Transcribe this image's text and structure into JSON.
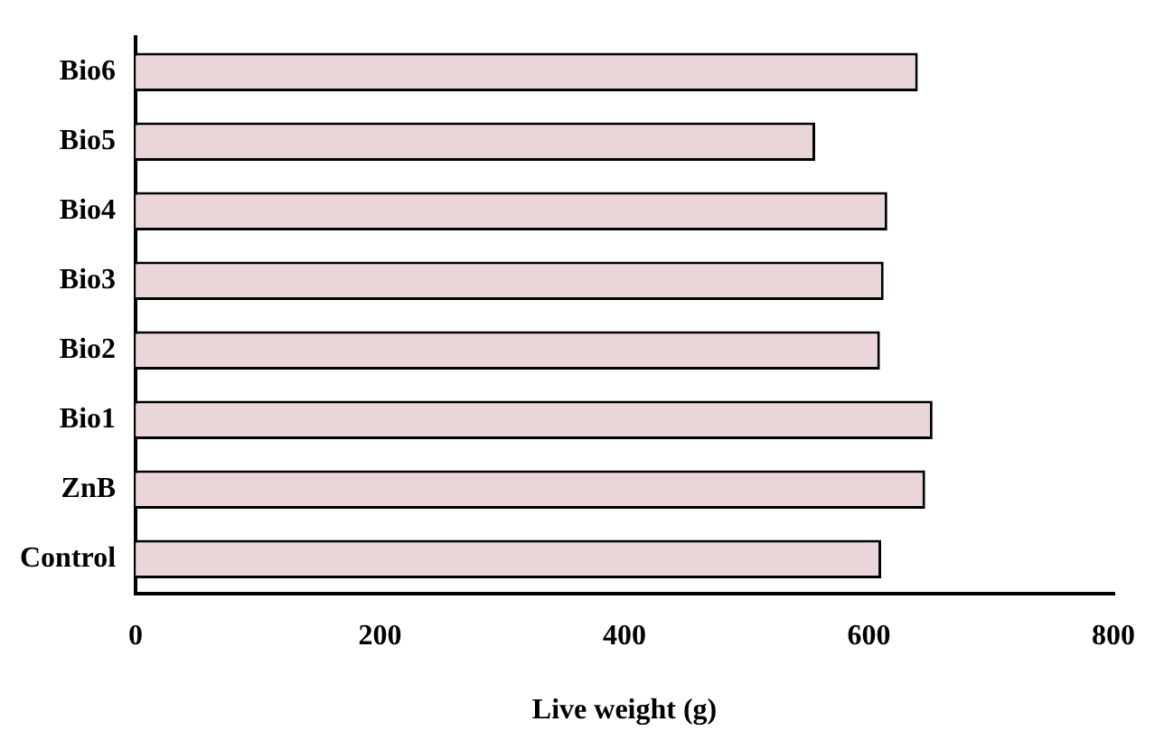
{
  "chart_data": {
    "type": "bar",
    "orientation": "horizontal",
    "xlabel": "Live weight (g)",
    "categories": [
      "Bio6",
      "Bio5",
      "Bio4",
      "Bio3",
      "Bio2",
      "Bio1",
      "ZnB",
      "Control"
    ],
    "values": [
      640,
      556,
      615,
      612,
      609,
      652,
      646,
      610
    ],
    "color": "#ead6d8",
    "xlim": [
      0,
      800
    ],
    "xticks": [
      0,
      200,
      400,
      600,
      800
    ],
    "grid": false,
    "legend": false
  }
}
